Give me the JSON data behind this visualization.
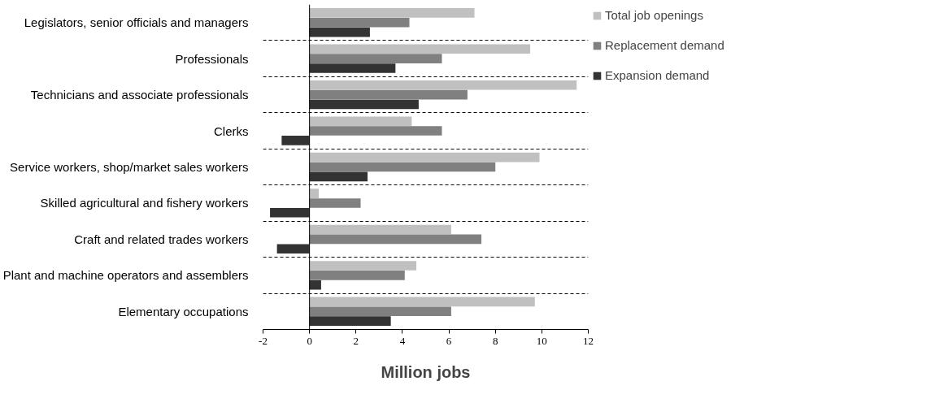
{
  "chart_data": {
    "type": "bar",
    "orientation": "horizontal",
    "xlabel": "Million jobs",
    "categories": [
      "Legislators, senior officials and managers",
      "Professionals",
      "Technicians and associate professionals",
      "Clerks",
      "Service workers, shop/market sales workers",
      "Skilled agricultural and fishery workers",
      "Craft and related trades workers",
      "Plant and machine operators and assemblers",
      "Elementary occupations"
    ],
    "series": [
      {
        "name": "Total job openings",
        "color": "#c0c0c0",
        "values": [
          7.1,
          9.5,
          11.5,
          4.4,
          9.9,
          0.4,
          6.1,
          4.6,
          9.7
        ]
      },
      {
        "name": "Replacement demand",
        "color": "#808080",
        "values": [
          4.3,
          5.7,
          6.8,
          5.7,
          8.0,
          2.2,
          7.4,
          4.1,
          6.1
        ]
      },
      {
        "name": "Expansion demand",
        "color": "#333333",
        "values": [
          2.6,
          3.7,
          4.7,
          -1.2,
          2.5,
          -1.7,
          -1.4,
          0.5,
          3.5
        ]
      }
    ],
    "xlim": [
      -2,
      12
    ],
    "xticks": [
      -2,
      0,
      2,
      4,
      6,
      8,
      10,
      12
    ],
    "grid": "y",
    "legend": "right"
  }
}
